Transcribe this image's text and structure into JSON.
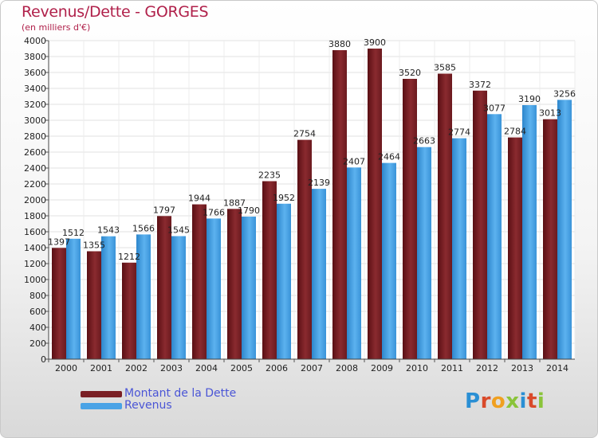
{
  "title": "Revenus/Dette - GORGES",
  "unit_label": "(en milliers d'€)",
  "logo": {
    "text": "Proxiti",
    "letter_colors": [
      "#2a8fd4",
      "#d94a2a",
      "#f0a020",
      "#8ac43a",
      "#2a8fd4",
      "#d94a2a",
      "#8ac43a"
    ]
  },
  "legend": {
    "placement": "bottom-left",
    "items": [
      {
        "label": "Montant de la Dette",
        "color": "#7a1f24"
      },
      {
        "label": "Revenus",
        "color": "#4aa3e6"
      }
    ]
  },
  "chart_data": {
    "type": "bar",
    "title": "Revenus/Dette - GORGES",
    "ylabel": "(en milliers d'€)",
    "xlabel": "",
    "ylim": [
      0,
      4000
    ],
    "ytick_step": 200,
    "grid": true,
    "categories": [
      "2000",
      "2001",
      "2002",
      "2003",
      "2004",
      "2005",
      "2006",
      "2007",
      "2008",
      "2009",
      "2010",
      "2011",
      "2012",
      "2013",
      "2014"
    ],
    "series": [
      {
        "name": "Montant de la Dette",
        "color": "#7a1f24",
        "values": [
          1397,
          1355,
          1212,
          1797,
          1944,
          1887,
          2235,
          2754,
          3880,
          3900,
          3520,
          3585,
          3372,
          2784,
          3013
        ],
        "labels": [
          "1397",
          "1355",
          "1212",
          "1797",
          "1944",
          "1887",
          "2235",
          "2754",
          "3880",
          "3900",
          "3520",
          "3585",
          "3372",
          "2784",
          "3013"
        ]
      },
      {
        "name": "Revenus",
        "color": "#4aa3e6",
        "values": [
          1512,
          1543,
          1566,
          1545,
          1766,
          1790,
          1952,
          2139,
          2407,
          2464,
          2663,
          2774,
          3077,
          3190,
          3256
        ],
        "labels": [
          "1512",
          "1543",
          "1566",
          "1545",
          "1766",
          "1790",
          "1952",
          "2139",
          "2407",
          "2464",
          "2663",
          "2774",
          "3077",
          "3190",
          "3256"
        ]
      }
    ]
  }
}
